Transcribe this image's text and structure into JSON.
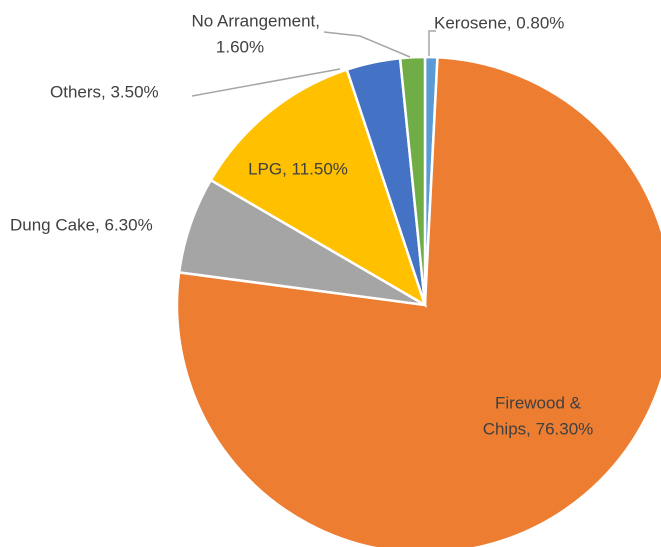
{
  "chart_data": {
    "type": "pie",
    "categories": [
      "Kerosene",
      "Firewood & Chips",
      "Dung Cake",
      "LPG",
      "Others",
      "No Arrangement"
    ],
    "values": [
      0.8,
      76.3,
      6.3,
      11.5,
      3.5,
      1.6
    ],
    "value_labels": [
      [
        "Kerosene, 0.80%"
      ],
      [
        "Firewood &",
        "Chips, 76.30%"
      ],
      [
        "Dung Cake, 6.30%"
      ],
      [
        "LPG, 11.50%"
      ],
      [
        "Others, 3.50%"
      ],
      [
        "No Arrangement,",
        "1.60%"
      ]
    ],
    "colors": [
      "#5b9bd5",
      "#ed7d31",
      "#a5a5a5",
      "#ffc000",
      "#4472c4",
      "#70ad47"
    ]
  }
}
